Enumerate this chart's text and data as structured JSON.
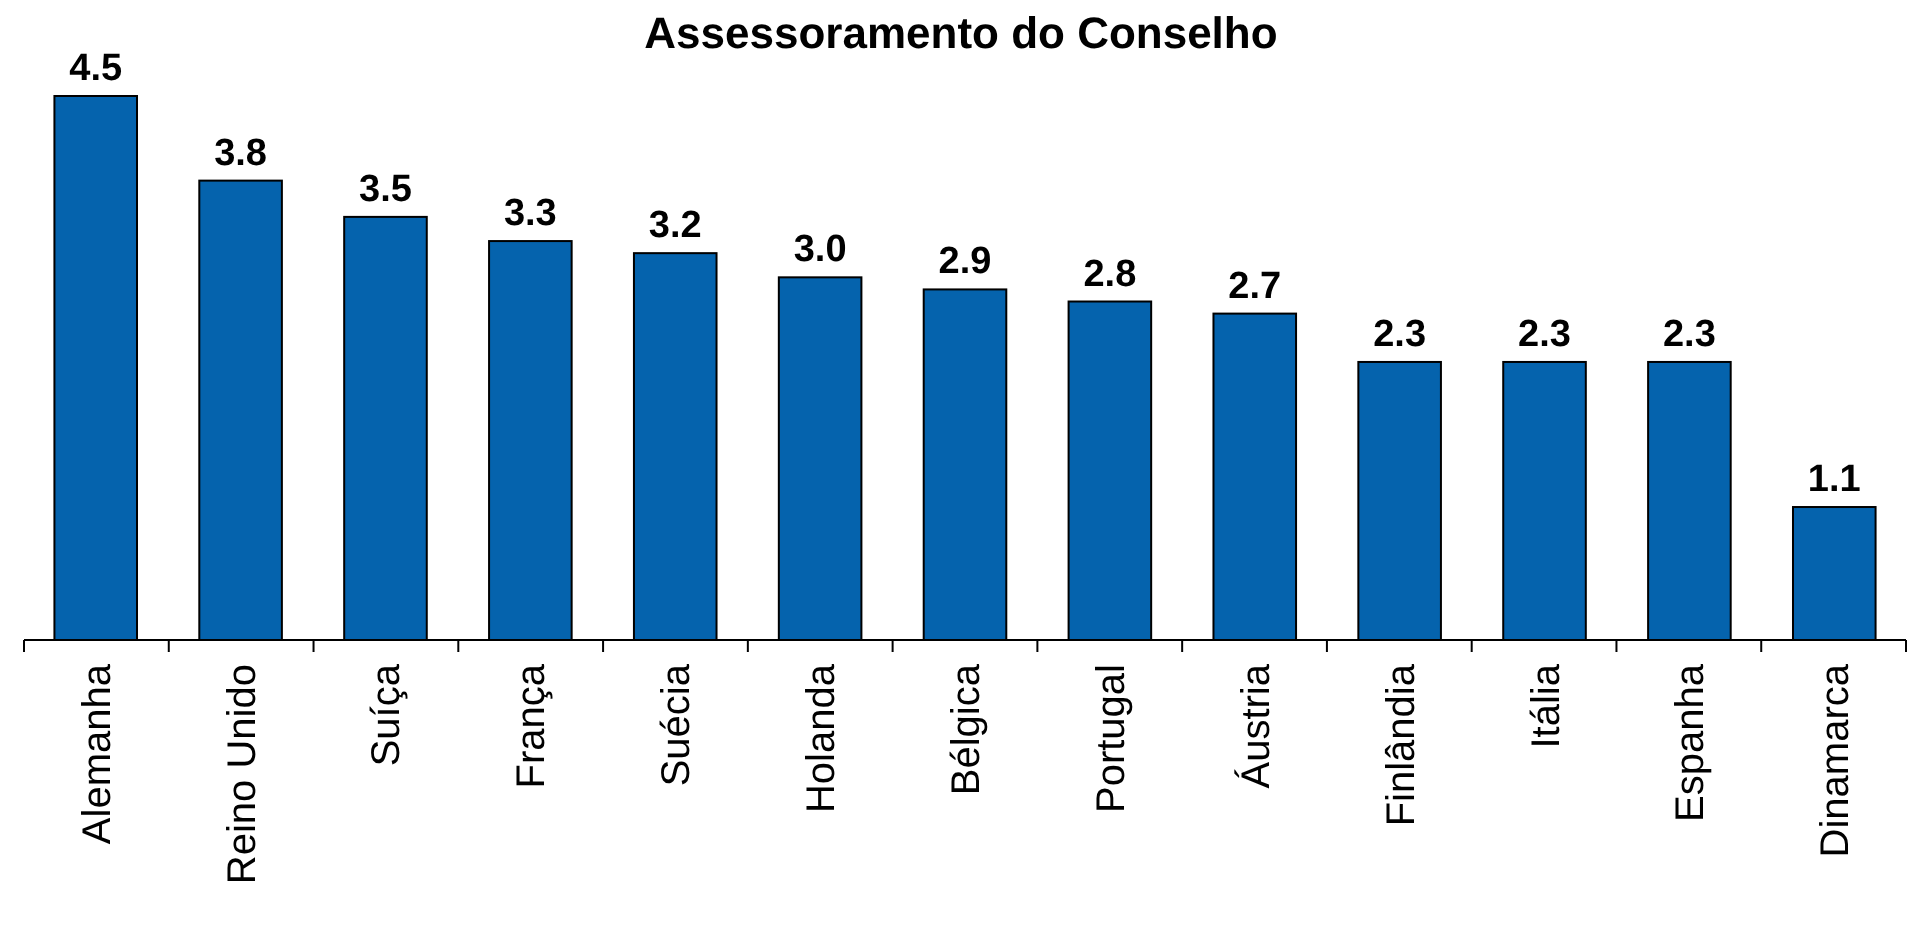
{
  "chart_data": {
    "type": "bar",
    "title": "Assessoramento do Conselho",
    "categories": [
      "Alemanha",
      "Reino Unido",
      "Suíça",
      "França",
      "Suécia",
      "Holanda",
      "Bélgica",
      "Portugal",
      "Áustria",
      "Finlândia",
      "Itália",
      "Espanha",
      "Dinamarca"
    ],
    "values": [
      4.5,
      3.8,
      3.5,
      3.3,
      3.2,
      3.0,
      2.9,
      2.8,
      2.7,
      2.3,
      2.3,
      2.3,
      1.1
    ],
    "value_labels": [
      "4.5",
      "3.8",
      "3.5",
      "3.3",
      "3.2",
      "3.0",
      "2.9",
      "2.8",
      "2.7",
      "2.3",
      "2.3",
      "2.3",
      "1.1"
    ],
    "color": "#0563ad"
  }
}
